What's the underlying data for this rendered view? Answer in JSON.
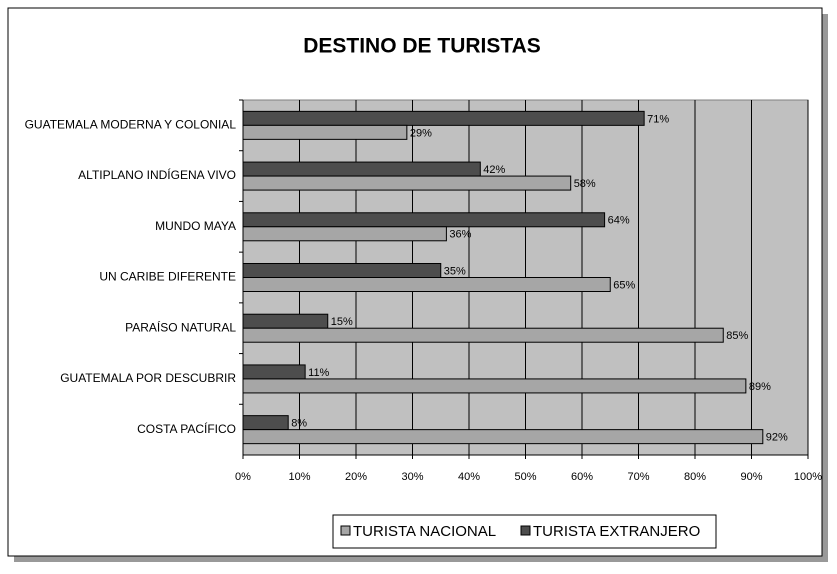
{
  "chart_data": {
    "type": "hbar",
    "title": "DESTINO DE TURISTAS",
    "categories": [
      "GUATEMALA MODERNA Y COLONIAL",
      "ALTIPLANO INDÍGENA VIVO",
      "MUNDO MAYA",
      "UN CARIBE DIFERENTE",
      "PARAÍSO NATURAL",
      "GUATEMALA POR DESCUBRIR",
      "COSTA PACÍFICO"
    ],
    "series": [
      {
        "name": "TURISTA NACIONAL",
        "color": "#a6a6a6",
        "values": [
          29,
          58,
          36,
          65,
          85,
          89,
          92
        ],
        "value_labels": [
          "29%",
          "58%",
          "36%",
          "65%",
          "85%",
          "89%",
          "92%"
        ]
      },
      {
        "name": "TURISTA EXTRANJERO",
        "color": "#4d4d4d",
        "values": [
          71,
          42,
          64,
          35,
          15,
          11,
          8
        ],
        "value_labels": [
          "71%",
          "42%",
          "64%",
          "35%",
          "15%",
          "11%",
          "8%"
        ]
      }
    ],
    "xlim": [
      0,
      100
    ],
    "xticks": [
      {
        "value": 0,
        "label": "0%"
      },
      {
        "value": 10,
        "label": "10%"
      },
      {
        "value": 20,
        "label": "20%"
      },
      {
        "value": 30,
        "label": "30%"
      },
      {
        "value": 40,
        "label": "40%"
      },
      {
        "value": 50,
        "label": "50%"
      },
      {
        "value": 60,
        "label": "60%"
      },
      {
        "value": 70,
        "label": "70%"
      },
      {
        "value": 80,
        "label": "80%"
      },
      {
        "value": 90,
        "label": "90%"
      },
      {
        "value": 100,
        "label": "100%"
      }
    ],
    "grid": true,
    "legend": "bottom"
  }
}
